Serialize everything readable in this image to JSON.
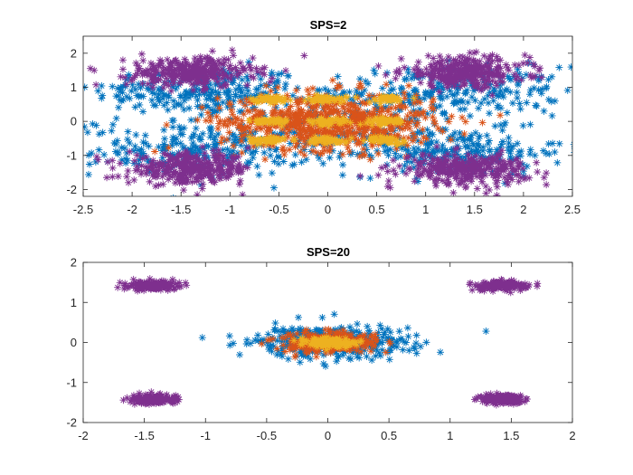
{
  "chart_data": [
    {
      "type": "scatter",
      "title": "SPS=2",
      "xlabel": "",
      "ylabel": "",
      "xlim": [
        -2.5,
        2.5
      ],
      "ylim": [
        -2.2,
        2.5
      ],
      "xticks": [
        "-2.5",
        "-2",
        "-1.5",
        "-1",
        "-0.5",
        "0",
        "0.5",
        "1",
        "1.5",
        "2",
        "2.5"
      ],
      "yticks": [
        "-2",
        "-1",
        "0",
        "1",
        "2"
      ],
      "marker": "*",
      "grid": false,
      "series": [
        {
          "color": "#0072BD",
          "clusters": [
            {
              "cx": -1.3,
              "cy": 0.9,
              "sx": 0.55,
              "sy": 0.35,
              "n": 230
            },
            {
              "cx": 1.3,
              "cy": 0.9,
              "sx": 0.55,
              "sy": 0.35,
              "n": 230
            },
            {
              "cx": -1.3,
              "cy": -0.9,
              "sx": 0.55,
              "sy": 0.35,
              "n": 230
            },
            {
              "cx": 1.3,
              "cy": -0.9,
              "sx": 0.55,
              "sy": 0.35,
              "n": 230
            },
            {
              "cx": 0,
              "cy": 0,
              "sx": 0.9,
              "sy": 0.55,
              "n": 220
            }
          ]
        },
        {
          "color": "#D95319",
          "clusters": [
            {
              "cx": 0,
              "cy": 0,
              "sx": 0.55,
              "sy": 0.42,
              "n": 650
            }
          ]
        },
        {
          "color": "#EDB120",
          "clusters": [
            {
              "cx": -0.6,
              "cy": 0.65,
              "sx": 0.1,
              "sy": 0.05,
              "n": 45
            },
            {
              "cx": -0.6,
              "cy": 0.0,
              "sx": 0.1,
              "sy": 0.05,
              "n": 45
            },
            {
              "cx": -0.6,
              "cy": -0.55,
              "sx": 0.1,
              "sy": 0.05,
              "n": 45
            },
            {
              "cx": 0.0,
              "cy": 0.65,
              "sx": 0.1,
              "sy": 0.05,
              "n": 45
            },
            {
              "cx": 0.0,
              "cy": 0.0,
              "sx": 0.1,
              "sy": 0.05,
              "n": 45
            },
            {
              "cx": 0.0,
              "cy": -0.55,
              "sx": 0.1,
              "sy": 0.05,
              "n": 45
            },
            {
              "cx": 0.6,
              "cy": 0.65,
              "sx": 0.1,
              "sy": 0.05,
              "n": 45
            },
            {
              "cx": 0.6,
              "cy": 0.0,
              "sx": 0.1,
              "sy": 0.05,
              "n": 45
            },
            {
              "cx": 0.6,
              "cy": -0.55,
              "sx": 0.1,
              "sy": 0.05,
              "n": 45
            }
          ]
        },
        {
          "color": "#7E2F8E",
          "clusters": [
            {
              "cx": -1.4,
              "cy": 1.45,
              "sx": 0.32,
              "sy": 0.22,
              "n": 320
            },
            {
              "cx": 1.4,
              "cy": 1.45,
              "sx": 0.32,
              "sy": 0.22,
              "n": 320
            },
            {
              "cx": -1.4,
              "cy": -1.4,
              "sx": 0.32,
              "sy": 0.22,
              "n": 320
            },
            {
              "cx": 1.4,
              "cy": -1.4,
              "sx": 0.32,
              "sy": 0.22,
              "n": 320
            }
          ]
        }
      ]
    },
    {
      "type": "scatter",
      "title": "SPS=20",
      "xlabel": "",
      "ylabel": "",
      "xlim": [
        -2,
        2
      ],
      "ylim": [
        -2,
        2
      ],
      "xticks": [
        "-2",
        "-1.5",
        "-1",
        "-0.5",
        "0",
        "0.5",
        "1",
        "1.5",
        "2"
      ],
      "yticks": [
        "-2",
        "-1",
        "0",
        "1",
        "2"
      ],
      "marker": "*",
      "grid": false,
      "series": [
        {
          "color": "#0072BD",
          "clusters": [
            {
              "cx": 0,
              "cy": 0,
              "sx": 0.32,
              "sy": 0.2,
              "n": 380
            }
          ]
        },
        {
          "color": "#D95319",
          "clusters": [
            {
              "cx": 0,
              "cy": 0,
              "sx": 0.22,
              "sy": 0.13,
              "n": 300
            }
          ]
        },
        {
          "color": "#EDB120",
          "clusters": [
            {
              "cx": 0,
              "cy": 0,
              "sx": 0.1,
              "sy": 0.06,
              "n": 150
            }
          ]
        },
        {
          "color": "#7E2F8E",
          "clusters": [
            {
              "cx": -1.42,
              "cy": 1.42,
              "sx": 0.1,
              "sy": 0.055,
              "n": 180
            },
            {
              "cx": 1.42,
              "cy": 1.42,
              "sx": 0.1,
              "sy": 0.055,
              "n": 180
            },
            {
              "cx": -1.42,
              "cy": -1.42,
              "sx": 0.1,
              "sy": 0.055,
              "n": 180
            },
            {
              "cx": 1.42,
              "cy": -1.42,
              "sx": 0.1,
              "sy": 0.055,
              "n": 180
            }
          ]
        }
      ]
    }
  ]
}
